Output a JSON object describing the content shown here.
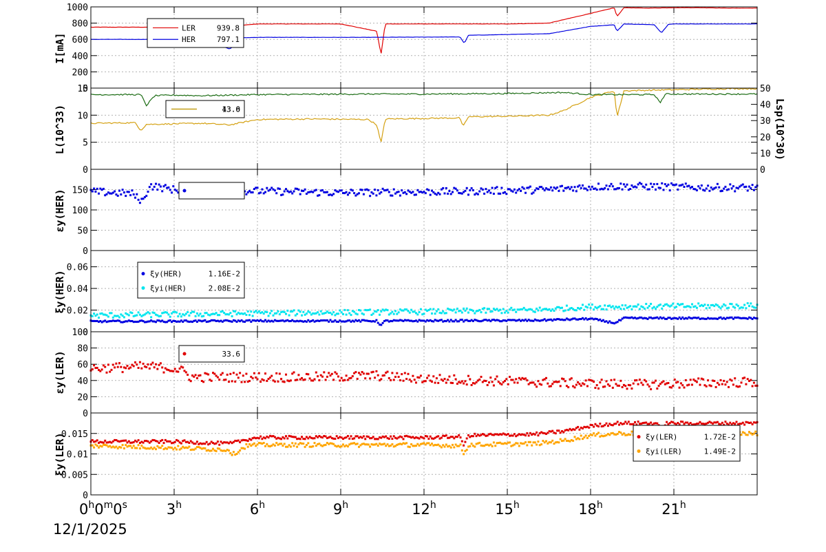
{
  "chart_data": [
    {
      "type": "line",
      "ylabel": "I[mA]",
      "ylim": [
        0,
        1000
      ],
      "yticks": [
        "0",
        "200",
        "400",
        "600",
        "800",
        "1000"
      ],
      "legend": [
        {
          "label": "LER",
          "value": "939.8",
          "color": "#e00000"
        },
        {
          "label": "HER",
          "value": "797.1",
          "color": "#0000e0"
        }
      ],
      "series": [
        {
          "name": "LER",
          "color": "#e00000",
          "x": [
            0,
            2,
            4,
            5.5,
            6,
            9,
            10.3,
            10.45,
            10.6,
            12,
            15,
            16.5,
            17,
            17.5,
            18,
            18.5,
            18.85,
            18.95,
            19.2,
            20,
            21,
            22,
            23,
            24
          ],
          "values": [
            750,
            750,
            760,
            775,
            790,
            790,
            700,
            410,
            790,
            790,
            790,
            800,
            840,
            880,
            920,
            960,
            990,
            880,
            990,
            985,
            990,
            990,
            985,
            985
          ]
        },
        {
          "name": "HER",
          "color": "#0000e0",
          "x": [
            0,
            2,
            4,
            5,
            5.5,
            6,
            10,
            13.3,
            13.45,
            13.6,
            15,
            16.5,
            17,
            18,
            18.85,
            18.95,
            19.2,
            20.3,
            20.55,
            20.8,
            21,
            24
          ],
          "values": [
            600,
            600,
            620,
            480,
            620,
            625,
            625,
            630,
            550,
            650,
            660,
            670,
            700,
            760,
            780,
            700,
            790,
            780,
            680,
            785,
            790,
            790
          ]
        }
      ]
    },
    {
      "type": "line",
      "ylabel": "L(10^33)",
      "y2label": "Lsp(10^30)",
      "ylim": [
        0,
        15
      ],
      "y2lim": [
        0,
        50
      ],
      "yticks": [
        "0",
        "5",
        "10",
        "15"
      ],
      "y2ticks": [
        "0",
        "10",
        "20",
        "30",
        "40",
        "50"
      ],
      "legend": [
        {
          "label": "",
          "value": "13.0",
          "color": "#1a6b12"
        },
        {
          "label": "",
          "value": "43.6",
          "color": "#d4a010"
        }
      ],
      "series": [
        {
          "name": "",
          "color": "#d4a010",
          "x": [
            0,
            1.6,
            1.8,
            2,
            3,
            4,
            5,
            6,
            8,
            10,
            10.3,
            10.45,
            10.6,
            12,
            13.3,
            13.4,
            13.6,
            15,
            16.5,
            17,
            17.5,
            18,
            18.5,
            18.85,
            18.95,
            19.2,
            20,
            21,
            22,
            23,
            24
          ],
          "values": [
            8.5,
            8.6,
            7.2,
            8.3,
            8.4,
            8.5,
            8.2,
            9.2,
            9.3,
            9.2,
            8.2,
            4.8,
            9.3,
            9.4,
            9.5,
            7.8,
            9.7,
            9.8,
            10.0,
            10.8,
            12.0,
            13.3,
            14.0,
            14.5,
            9.6,
            14.5,
            14.6,
            14.7,
            14.8,
            14.9,
            14.9
          ]
        },
        {
          "name": "",
          "color": "#1a6b12",
          "x": [
            0,
            1.8,
            2,
            2.3,
            3,
            4,
            6,
            10,
            12,
            15,
            17,
            18,
            19,
            20.3,
            20.5,
            20.7,
            22,
            24
          ],
          "values": [
            13.8,
            13.8,
            11.8,
            13.6,
            13.7,
            13.6,
            13.8,
            13.9,
            13.9,
            14.0,
            14.2,
            13.8,
            13.8,
            13.8,
            12.3,
            13.9,
            13.9,
            13.9
          ]
        }
      ]
    },
    {
      "type": "scatter",
      "ylabel": "εy(HER)",
      "ylim": [
        0,
        200
      ],
      "yticks": [
        "0",
        "50",
        "100",
        "150"
      ],
      "legend": [
        {
          "label": "",
          "value": "",
          "color": "#0000e0"
        }
      ],
      "series": [
        {
          "name": "",
          "color": "#0000e0",
          "x": [
            0,
            1.5,
            1.7,
            1.9,
            2.1,
            3,
            5,
            7,
            9,
            11,
            13,
            15,
            16.5,
            17.5,
            18.5,
            20,
            22,
            24
          ],
          "values": [
            145,
            140,
            128,
            122,
            160,
            150,
            148,
            145,
            142,
            144,
            145,
            148,
            150,
            155,
            158,
            158,
            155,
            155
          ],
          "spread": 9
        }
      ]
    },
    {
      "type": "scatter",
      "ylabel": "ξy(HER)",
      "ylim": [
        0,
        0.075
      ],
      "yticks": [
        "0",
        "0.02",
        "0.04",
        "0.06"
      ],
      "legend": [
        {
          "label": "ξy(HER)",
          "value": "1.16E-2",
          "color": "#0000e0"
        },
        {
          "label": "ξyi(HER)",
          "value": "2.08E-2",
          "color": "#00e5ee"
        }
      ],
      "series": [
        {
          "name": "ξy(HER)",
          "color": "#0000e0",
          "x": [
            0,
            6,
            10.3,
            10.45,
            10.6,
            16,
            18,
            18.9,
            19.2,
            24
          ],
          "values": [
            0.0095,
            0.01,
            0.01,
            0.006,
            0.01,
            0.0105,
            0.012,
            0.008,
            0.0125,
            0.0125
          ],
          "spread": 0.0008
        },
        {
          "name": "ξyi(HER)",
          "color": "#00e5ee",
          "x": [
            0,
            6,
            12,
            16,
            18,
            24
          ],
          "values": [
            0.015,
            0.017,
            0.0185,
            0.02,
            0.023,
            0.024
          ],
          "spread": 0.0025
        }
      ]
    },
    {
      "type": "scatter",
      "ylabel": "εy(LER)",
      "ylim": [
        0,
        100
      ],
      "yticks": [
        "0",
        "20",
        "40",
        "60",
        "80",
        "100"
      ],
      "legend": [
        {
          "label": "",
          "value": "33.6",
          "color": "#e00000"
        }
      ],
      "series": [
        {
          "name": "",
          "color": "#e00000",
          "x": [
            0,
            2,
            3,
            3.4,
            3.6,
            5,
            8,
            10.3,
            12,
            16,
            18,
            20,
            22,
            24
          ],
          "values": [
            55,
            57,
            55,
            50,
            44,
            44,
            44,
            46,
            42,
            38,
            36,
            35,
            37,
            38
          ],
          "spread": 6
        }
      ]
    },
    {
      "type": "scatter",
      "ylabel": "ξy(LER)",
      "ylim": [
        0,
        0.02
      ],
      "yticks": [
        "0",
        "0.005",
        "0.01",
        "0.015"
      ],
      "legend": [
        {
          "label": "ξy(LER)",
          "value": "1.72E-2",
          "color": "#e00000"
        },
        {
          "label": "ξyi(LER)",
          "value": "1.49E-2",
          "color": "#ffa500"
        }
      ],
      "series": [
        {
          "name": "ξy(LER)",
          "color": "#e00000",
          "x": [
            0,
            3,
            5,
            5.6,
            6,
            12,
            13.3,
            13.45,
            13.6,
            16,
            17,
            18,
            19,
            20.4,
            20.55,
            20.7,
            24
          ],
          "values": [
            0.013,
            0.013,
            0.0125,
            0.0135,
            0.014,
            0.014,
            0.0142,
            0.012,
            0.0145,
            0.0148,
            0.0155,
            0.0168,
            0.0175,
            0.0175,
            0.0155,
            0.0175,
            0.0175
          ],
          "spread": 0.0004
        },
        {
          "name": "ξyi(LER)",
          "color": "#ffa500",
          "x": [
            0,
            3,
            5,
            5.1,
            5.6,
            6,
            12,
            13.3,
            13.45,
            13.6,
            16,
            17,
            18,
            19,
            24
          ],
          "values": [
            0.012,
            0.0115,
            0.011,
            0.0098,
            0.012,
            0.0122,
            0.0122,
            0.012,
            0.01,
            0.0122,
            0.0125,
            0.0132,
            0.0145,
            0.015,
            0.015
          ],
          "spread": 0.0005
        }
      ]
    }
  ],
  "xaxis": {
    "range_hours": [
      0,
      24
    ],
    "ticks": [
      {
        "h": 0,
        "label": "0",
        "sup": "h",
        "label2": "0",
        "sup2": "m",
        "label3": "0",
        "sup3": "s"
      },
      {
        "h": 3,
        "label": "3",
        "sup": "h"
      },
      {
        "h": 6,
        "label": "6",
        "sup": "h"
      },
      {
        "h": 9,
        "label": "9",
        "sup": "h"
      },
      {
        "h": 12,
        "label": "12",
        "sup": "h"
      },
      {
        "h": 15,
        "label": "15",
        "sup": "h"
      },
      {
        "h": 18,
        "label": "18",
        "sup": "h"
      },
      {
        "h": 21,
        "label": "21",
        "sup": "h"
      }
    ],
    "date_label": "12/1/2025"
  }
}
